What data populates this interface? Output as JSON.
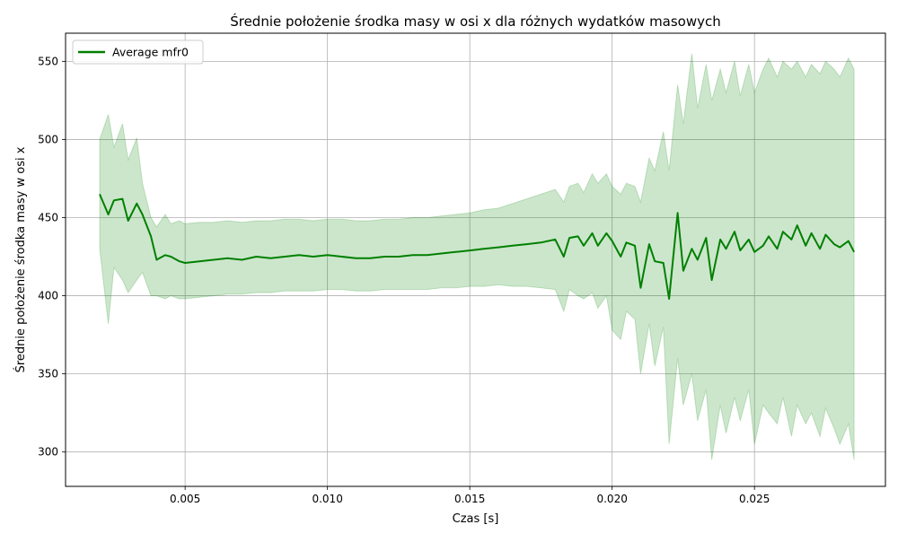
{
  "chart_data": {
    "type": "line",
    "title": "Średnie położenie środka masy w osi x dla różnych wydatków masowych",
    "xlabel": "Czas [s]",
    "ylabel": "Średnie położenie środka masy w osi x",
    "xlim": [
      0.0008,
      0.0296
    ],
    "ylim": [
      278,
      568
    ],
    "xticks": [
      0.005,
      0.01,
      0.015,
      0.02,
      0.025
    ],
    "xtick_labels": [
      "0.005",
      "0.010",
      "0.015",
      "0.020",
      "0.025"
    ],
    "yticks": [
      300,
      350,
      400,
      450,
      500,
      550
    ],
    "ytick_labels": [
      "300",
      "350",
      "400",
      "450",
      "500",
      "550"
    ],
    "grid": true,
    "legend_position": "upper-left",
    "colors": {
      "line": "#008000",
      "band": "#008000"
    },
    "series": [
      {
        "name": "Average mfr0",
        "x": [
          0.002,
          0.0023,
          0.0025,
          0.0028,
          0.003,
          0.0033,
          0.0035,
          0.0038,
          0.004,
          0.0043,
          0.0045,
          0.0048,
          0.005,
          0.0055,
          0.006,
          0.0065,
          0.007,
          0.0075,
          0.008,
          0.0085,
          0.009,
          0.0095,
          0.01,
          0.0105,
          0.011,
          0.0115,
          0.012,
          0.0125,
          0.013,
          0.0135,
          0.014,
          0.0145,
          0.015,
          0.0155,
          0.016,
          0.0165,
          0.017,
          0.0175,
          0.018,
          0.0183,
          0.0185,
          0.0188,
          0.019,
          0.0193,
          0.0195,
          0.0198,
          0.02,
          0.0203,
          0.0205,
          0.0208,
          0.021,
          0.0213,
          0.0215,
          0.0218,
          0.022,
          0.0223,
          0.0225,
          0.0228,
          0.023,
          0.0233,
          0.0235,
          0.0238,
          0.024,
          0.0243,
          0.0245,
          0.0248,
          0.025,
          0.0253,
          0.0255,
          0.0258,
          0.026,
          0.0263,
          0.0265,
          0.0268,
          0.027,
          0.0273,
          0.0275,
          0.0278,
          0.028,
          0.0283,
          0.0285
        ],
        "values": [
          465,
          452,
          461,
          462,
          448,
          459,
          452,
          438,
          423,
          426,
          425,
          422,
          421,
          422,
          423,
          424,
          423,
          425,
          424,
          425,
          426,
          425,
          426,
          425,
          424,
          424,
          425,
          425,
          426,
          426,
          427,
          428,
          429,
          430,
          431,
          432,
          433,
          434,
          436,
          425,
          437,
          438,
          432,
          440,
          432,
          440,
          435,
          425,
          434,
          432,
          405,
          433,
          422,
          421,
          398,
          453,
          416,
          430,
          423,
          437,
          410,
          436,
          430,
          441,
          429,
          436,
          428,
          432,
          438,
          430,
          441,
          436,
          445,
          432,
          440,
          430,
          439,
          433,
          431,
          435,
          428
        ],
        "band_upper": [
          500,
          516,
          495,
          510,
          487,
          501,
          472,
          450,
          444,
          452,
          446,
          448,
          446,
          447,
          447,
          448,
          447,
          448,
          448,
          449,
          449,
          448,
          449,
          449,
          448,
          448,
          449,
          449,
          450,
          450,
          451,
          452,
          453,
          455,
          456,
          459,
          462,
          465,
          468,
          460,
          470,
          472,
          466,
          478,
          472,
          478,
          470,
          465,
          472,
          470,
          460,
          488,
          480,
          505,
          480,
          535,
          510,
          555,
          520,
          548,
          525,
          545,
          530,
          550,
          528,
          548,
          530,
          545,
          552,
          540,
          550,
          545,
          550,
          540,
          548,
          542,
          550,
          545,
          540,
          552,
          545
        ],
        "band_lower": [
          430,
          382,
          418,
          410,
          402,
          410,
          415,
          400,
          400,
          398,
          400,
          398,
          398,
          399,
          400,
          401,
          401,
          402,
          402,
          403,
          403,
          403,
          404,
          404,
          403,
          403,
          404,
          404,
          404,
          404,
          405,
          405,
          406,
          406,
          407,
          406,
          406,
          405,
          404,
          390,
          404,
          400,
          398,
          402,
          392,
          400,
          378,
          372,
          390,
          385,
          350,
          382,
          355,
          380,
          305,
          360,
          330,
          350,
          320,
          340,
          295,
          330,
          312,
          335,
          320,
          340,
          305,
          330,
          325,
          318,
          335,
          310,
          330,
          318,
          325,
          310,
          328,
          315,
          305,
          318,
          295
        ]
      }
    ]
  }
}
